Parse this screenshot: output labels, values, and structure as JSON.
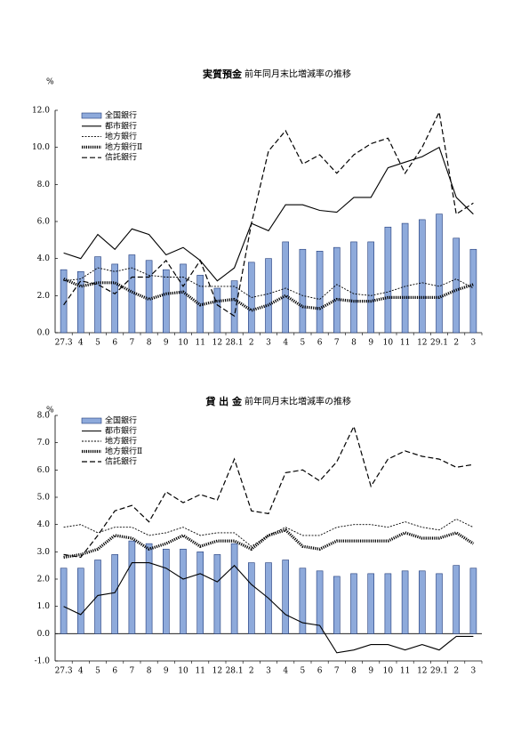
{
  "chart_data": [
    {
      "type": "bar",
      "title": "実質預金",
      "subtitle": "前年同月末比増減率の推移",
      "y_unit": "%",
      "categories": [
        "27.3",
        "4",
        "5",
        "6",
        "7",
        "8",
        "9",
        "10",
        "11",
        "12",
        "28.1",
        "2",
        "3",
        "4",
        "5",
        "6",
        "7",
        "8",
        "9",
        "10",
        "11",
        "12",
        "29.1",
        "2",
        "3"
      ],
      "ylim": [
        0,
        12
      ],
      "yticks": [
        {
          "value": 0,
          "label": "0.0"
        },
        {
          "value": 2,
          "label": "2.0"
        },
        {
          "value": 4,
          "label": "4.0"
        },
        {
          "value": 6,
          "label": "6.0"
        },
        {
          "value": 8,
          "label": "8.0"
        },
        {
          "value": 10,
          "label": "10.0"
        },
        {
          "value": 12,
          "label": "12.0"
        }
      ],
      "grid": false,
      "legend": "upper left",
      "series": [
        {
          "name": "全国銀行",
          "style": "bar",
          "color": "#8eaadb",
          "values": [
            3.4,
            3.3,
            4.1,
            3.7,
            4.2,
            3.9,
            3.4,
            3.7,
            3.1,
            2.4,
            2.8,
            3.8,
            4.0,
            4.9,
            4.5,
            4.4,
            4.6,
            4.9,
            4.9,
            5.7,
            5.9,
            6.1,
            6.4,
            5.1,
            4.5
          ]
        },
        {
          "name": "都市銀行",
          "style": "solid",
          "color": "#000000",
          "values": [
            4.3,
            4.0,
            5.3,
            4.5,
            5.6,
            5.3,
            4.2,
            4.6,
            3.9,
            2.8,
            3.5,
            5.9,
            5.5,
            6.9,
            6.9,
            6.6,
            6.5,
            7.3,
            7.3,
            8.9,
            9.2,
            9.5,
            10.0,
            7.3,
            6.4
          ]
        },
        {
          "name": "地方銀行",
          "style": "dotted",
          "color": "#000000",
          "values": [
            2.8,
            2.9,
            3.5,
            3.3,
            3.5,
            3.1,
            3.0,
            3.0,
            2.5,
            2.5,
            2.5,
            1.9,
            2.1,
            2.4,
            2.0,
            1.8,
            2.6,
            2.1,
            2.0,
            2.2,
            2.5,
            2.7,
            2.5,
            2.9,
            2.4
          ]
        },
        {
          "name": "地方銀行Ⅱ",
          "style": "hatched",
          "color": "#000000",
          "values": [
            2.9,
            2.5,
            2.7,
            2.7,
            2.2,
            1.8,
            2.1,
            2.2,
            1.5,
            1.7,
            1.8,
            1.2,
            1.5,
            2.0,
            1.4,
            1.3,
            1.8,
            1.7,
            1.7,
            1.9,
            1.9,
            1.9,
            1.9,
            2.3,
            2.6
          ]
        },
        {
          "name": "信託銀行",
          "style": "dashed",
          "color": "#000000",
          "values": [
            1.5,
            2.8,
            2.6,
            2.1,
            3.0,
            3.0,
            3.9,
            2.5,
            3.9,
            1.5,
            0.9,
            5.9,
            9.8,
            10.9,
            9.1,
            9.6,
            8.6,
            9.6,
            10.2,
            10.5,
            8.6,
            10.0,
            11.9,
            6.4,
            7.0
          ]
        }
      ]
    },
    {
      "type": "bar",
      "title": "貸 出 金",
      "subtitle": "前年同月末比増減率の推移",
      "y_unit": "%",
      "categories": [
        "27.3",
        "4",
        "5",
        "6",
        "7",
        "8",
        "9",
        "10",
        "11",
        "12",
        "28.1",
        "2",
        "3",
        "4",
        "5",
        "6",
        "7",
        "8",
        "9",
        "10",
        "11",
        "12",
        "29.1",
        "2",
        "3"
      ],
      "ylim": [
        -1,
        8
      ],
      "yticks": [
        {
          "value": -1,
          "label": "-1.0"
        },
        {
          "value": 0,
          "label": "0.0"
        },
        {
          "value": 1,
          "label": "1.0"
        },
        {
          "value": 2,
          "label": "2.0"
        },
        {
          "value": 3,
          "label": "3.0"
        },
        {
          "value": 4,
          "label": "4.0"
        },
        {
          "value": 5,
          "label": "5.0"
        },
        {
          "value": 6,
          "label": "6.0"
        },
        {
          "value": 7,
          "label": "7.0"
        },
        {
          "value": 8,
          "label": "8.0"
        }
      ],
      "grid": false,
      "legend": "upper left",
      "series": [
        {
          "name": "全国銀行",
          "style": "bar",
          "color": "#8eaadb",
          "values": [
            2.4,
            2.4,
            2.7,
            2.9,
            3.4,
            3.3,
            3.1,
            3.1,
            3.0,
            2.9,
            3.3,
            2.6,
            2.6,
            2.7,
            2.4,
            2.3,
            2.1,
            2.2,
            2.2,
            2.2,
            2.3,
            2.3,
            2.2,
            2.5,
            2.4
          ]
        },
        {
          "name": "都市銀行",
          "style": "solid",
          "color": "#000000",
          "values": [
            1.0,
            0.7,
            1.4,
            1.5,
            2.6,
            2.6,
            2.4,
            2.0,
            2.2,
            1.9,
            2.5,
            1.8,
            1.3,
            0.7,
            0.4,
            0.3,
            -0.7,
            -0.6,
            -0.4,
            -0.4,
            -0.6,
            -0.4,
            -0.6,
            -0.1,
            -0.1
          ]
        },
        {
          "name": "地方銀行",
          "style": "dotted",
          "color": "#000000",
          "values": [
            3.9,
            4.0,
            3.7,
            3.9,
            3.9,
            3.6,
            3.7,
            3.9,
            3.6,
            3.7,
            3.7,
            3.2,
            3.6,
            3.9,
            3.6,
            3.6,
            3.9,
            4.0,
            4.0,
            3.9,
            4.1,
            3.9,
            3.8,
            4.2,
            3.9
          ]
        },
        {
          "name": "地方銀行Ⅱ",
          "style": "hatched",
          "color": "#000000",
          "values": [
            2.8,
            2.9,
            3.1,
            3.6,
            3.5,
            3.1,
            3.3,
            3.6,
            3.2,
            3.4,
            3.4,
            3.1,
            3.6,
            3.8,
            3.2,
            3.1,
            3.4,
            3.4,
            3.4,
            3.4,
            3.7,
            3.5,
            3.5,
            3.7,
            3.3
          ]
        },
        {
          "name": "信託銀行",
          "style": "dashed",
          "color": "#000000",
          "values": [
            2.9,
            2.8,
            3.6,
            4.5,
            4.7,
            4.1,
            5.2,
            4.8,
            5.1,
            4.9,
            6.4,
            4.5,
            4.4,
            5.9,
            6.0,
            5.6,
            6.3,
            7.6,
            5.4,
            6.4,
            6.7,
            6.5,
            6.4,
            6.1,
            6.2
          ]
        }
      ]
    }
  ]
}
